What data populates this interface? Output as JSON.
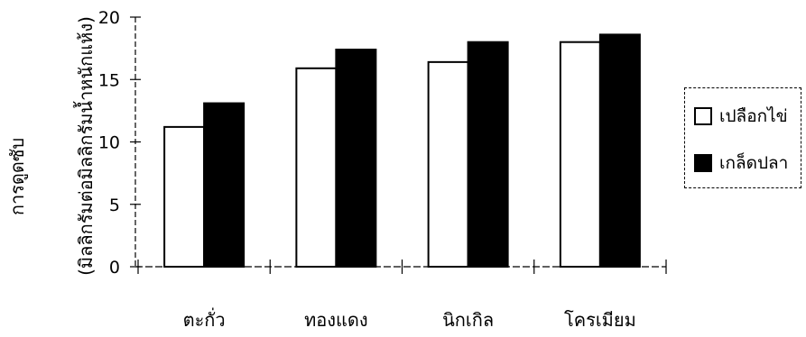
{
  "chart_data": {
    "type": "bar",
    "categories": [
      "ตะกั่ว",
      "ทองแดง",
      "นิกเกิล",
      "โครเมียม"
    ],
    "series": [
      {
        "name": "เปลือกไข่",
        "values": [
          11.2,
          15.9,
          16.4,
          18.0
        ],
        "color": "#ffffff"
      },
      {
        "name": "เกล็ดปลา",
        "values": [
          13.1,
          17.4,
          18.0,
          18.6
        ],
        "color": "#000000"
      }
    ],
    "ylim": [
      0,
      20
    ],
    "yticks": [
      "0",
      "5",
      "10",
      "15",
      "20"
    ],
    "ylabel_line1": "การดูดซับ",
    "ylabel_line2": "(มิลลิกรัมต่อมิลลิกรัมน้ำหนักแห้ง)",
    "grid": false,
    "legend": "right"
  }
}
